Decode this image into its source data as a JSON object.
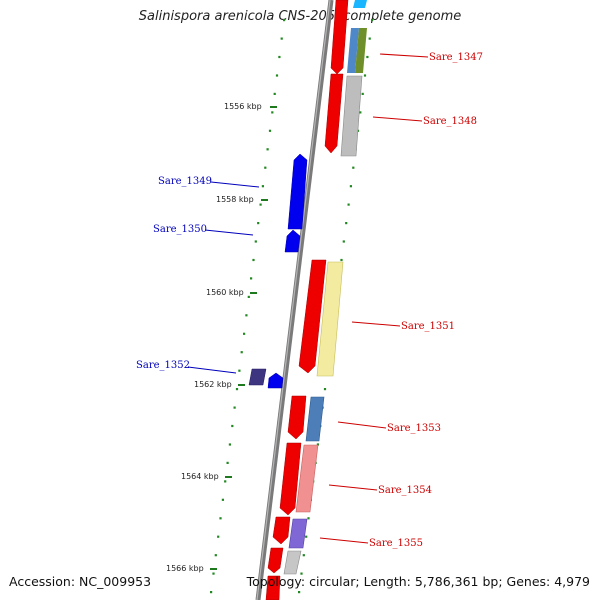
{
  "title": "Salinispora arenicola CNS-205, complete genome",
  "accession": "Accession: NC_009953",
  "topology": "Topology: circular; Length: 5,786,361 bp; Genes: 4,979",
  "colors": {
    "forward_label": "#cc0000",
    "reverse_label": "#0000bb",
    "tick": "#228822",
    "backbone": "#777777"
  },
  "kbp_ticks": [
    "1556 kbp",
    "1558 kbp",
    "1560 kbp",
    "1562 kbp",
    "1564 kbp",
    "1566 kbp"
  ],
  "genes": [
    {
      "name": "Sare_1347",
      "strand": "forward"
    },
    {
      "name": "Sare_1348",
      "strand": "forward"
    },
    {
      "name": "Sare_1349",
      "strand": "reverse"
    },
    {
      "name": "Sare_1350",
      "strand": "reverse"
    },
    {
      "name": "Sare_1351",
      "strand": "forward"
    },
    {
      "name": "Sare_1352",
      "strand": "reverse"
    },
    {
      "name": "Sare_1353",
      "strand": "forward"
    },
    {
      "name": "Sare_1354",
      "strand": "forward"
    },
    {
      "name": "Sare_1355",
      "strand": "forward"
    }
  ]
}
